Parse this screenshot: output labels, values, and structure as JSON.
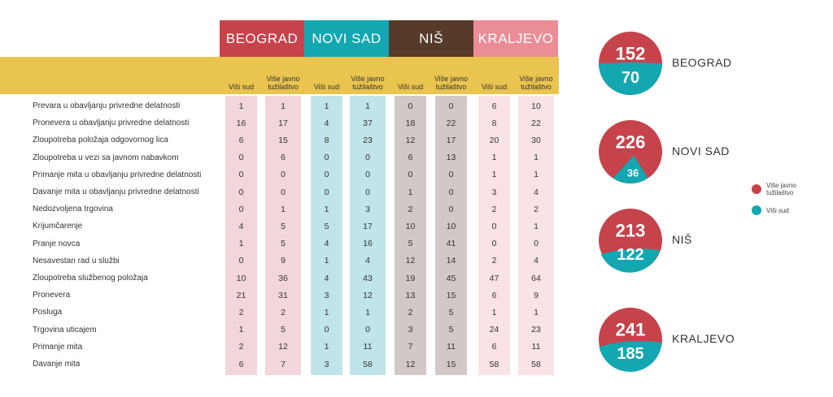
{
  "colors": {
    "beograd": "#c6434b",
    "novisad": "#12a7b1",
    "nis": "#563a2a",
    "kraljevo": "#eb8d96",
    "yellow": "#e9c44e",
    "strip_beograd": "#f2d6db",
    "strip_novisad": "#bfe4ea",
    "strip_nis": "#d2c8c6",
    "strip_kraljevo": "#fae3e7",
    "circle_red": "#c6434b",
    "circle_teal": "#12a7b1"
  },
  "sub_labels": {
    "visi_sud": "Viši sud",
    "tuzilastvo": "Više javno tužilaštvo"
  },
  "legend": [
    {
      "label": "Više javno tužilaštvo",
      "color": "#c6434b"
    },
    {
      "label": "Viši sud",
      "color": "#12a7b1"
    }
  ],
  "chart_data": {
    "type": "table",
    "cities": [
      "BEOGRAD",
      "NOVI SAD",
      "NIŠ",
      "KRALJEVO"
    ],
    "columns": [
      "Viši sud",
      "Više javno tužilaštvo"
    ],
    "rows": [
      {
        "label": "Prevara u obavljanju privredne delatnosti",
        "values": [
          1,
          1,
          1,
          1,
          0,
          0,
          6,
          10
        ]
      },
      {
        "label": "Pronevera u obavljanju privredne delatnosti",
        "values": [
          16,
          17,
          4,
          37,
          18,
          22,
          8,
          22
        ]
      },
      {
        "label": "Zloupotreba položaja odgovornog lica",
        "values": [
          6,
          15,
          8,
          23,
          12,
          17,
          20,
          30
        ]
      },
      {
        "label": "Zloupotreba u vezi sa javnom nabavkom",
        "values": [
          0,
          6,
          0,
          0,
          6,
          13,
          1,
          1
        ]
      },
      {
        "label": "Primanje mita u obavljanju privredne delatnosti",
        "values": [
          0,
          0,
          0,
          0,
          0,
          0,
          1,
          1
        ]
      },
      {
        "label": "Davanje mita u obavljanju privredne delatnosti",
        "values": [
          0,
          0,
          0,
          0,
          1,
          0,
          3,
          4
        ]
      },
      {
        "label": "Nedozvoljena trgovina",
        "values": [
          0,
          1,
          1,
          3,
          2,
          0,
          2,
          2
        ]
      },
      {
        "label": "Krijumčarenje",
        "values": [
          4,
          5,
          5,
          17,
          10,
          10,
          0,
          1
        ]
      },
      {
        "label": "Pranje novca",
        "values": [
          1,
          5,
          4,
          16,
          5,
          41,
          0,
          0
        ]
      },
      {
        "label": "Nesavestan rad u službi",
        "values": [
          0,
          9,
          1,
          4,
          12,
          14,
          2,
          4
        ]
      },
      {
        "label": "Zloupotreba službenog položaja",
        "values": [
          10,
          36,
          4,
          43,
          19,
          45,
          47,
          64
        ]
      },
      {
        "label": "Pronevera",
        "values": [
          21,
          31,
          3,
          12,
          13,
          15,
          6,
          9
        ]
      },
      {
        "label": "Posluga",
        "values": [
          2,
          2,
          1,
          1,
          2,
          5,
          1,
          1
        ]
      },
      {
        "label": "Trgovina uticajem",
        "values": [
          1,
          5,
          0,
          0,
          3,
          5,
          24,
          23
        ]
      },
      {
        "label": "Primanje mita",
        "values": [
          2,
          12,
          1,
          11,
          7,
          11,
          6,
          11
        ]
      },
      {
        "label": "Davanje mita",
        "values": [
          6,
          7,
          3,
          58,
          12,
          15,
          58,
          58
        ]
      }
    ],
    "totals": [
      {
        "city": "BEOGRAD",
        "tuzilastvo": 152,
        "visi_sud": 70
      },
      {
        "city": "NOVI SAD",
        "tuzilastvo": 226,
        "visi_sud": 36
      },
      {
        "city": "NIŠ",
        "tuzilastvo": 213,
        "visi_sud": 122
      },
      {
        "city": "KRALJEVO",
        "tuzilastvo": 241,
        "visi_sud": 185
      }
    ]
  }
}
